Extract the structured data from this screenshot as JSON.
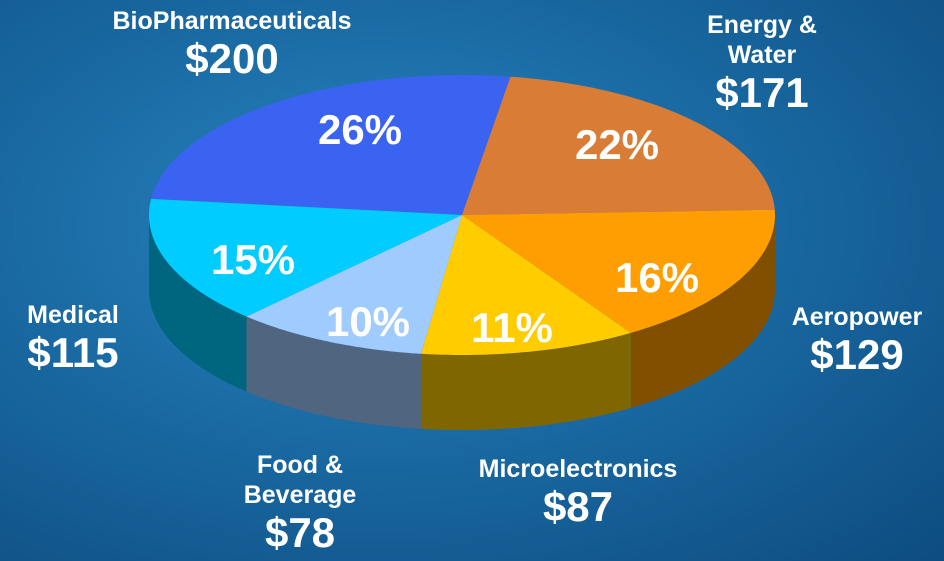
{
  "chart_data": {
    "type": "pie",
    "categories": [
      "BioPharmaceuticals",
      "Energy &\nWater",
      "Aeropower",
      "Microelectronics",
      "Food &\nBeverage",
      "Medical"
    ],
    "values": [
      200,
      171,
      129,
      87,
      78,
      115
    ],
    "value_labels": [
      "$200",
      "$171",
      "$129",
      "$87",
      "$78",
      "$115"
    ],
    "percent_labels": [
      "26%",
      "22%",
      "16%",
      "11%",
      "10%",
      "15%"
    ],
    "colors": [
      "#3b63f2",
      "#d97c36",
      "#ff9e00",
      "#ffcc00",
      "#9fcbff",
      "#00ccff"
    ]
  }
}
